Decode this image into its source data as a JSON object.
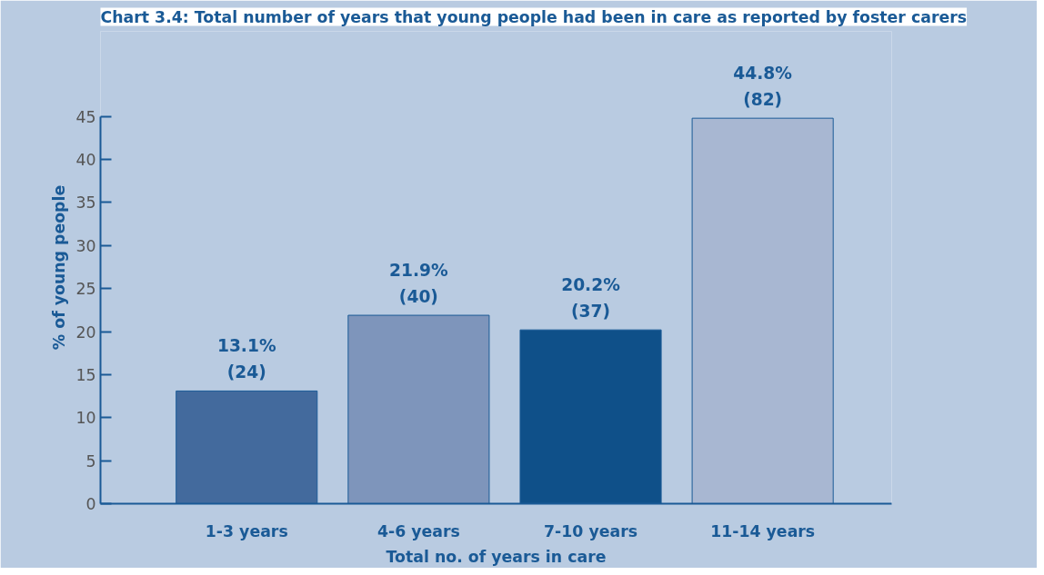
{
  "chart_data": {
    "type": "bar",
    "title": "Chart 3.4: Total number of years that young people had been in care as reported by foster carers",
    "xlabel": "Total no. of years in care",
    "ylabel": "% of young people",
    "categories": [
      "1-3 years",
      "4-6 years",
      "7-10 years",
      "11-14 years"
    ],
    "values": [
      13.1,
      21.9,
      20.2,
      44.8
    ],
    "colors": [
      "#436a9d",
      "#7e95bb",
      "#0f5089",
      "#a8b7d2"
    ],
    "value_labels": [
      "13.1%\n(24)",
      "21.9%\n(40)",
      "20.2%\n(37)",
      "44.8%\n(82)"
    ],
    "ylim": [
      0,
      45
    ],
    "yticks": [
      0,
      5,
      10,
      15,
      20,
      25,
      30,
      35,
      40,
      45
    ],
    "grid": false
  }
}
